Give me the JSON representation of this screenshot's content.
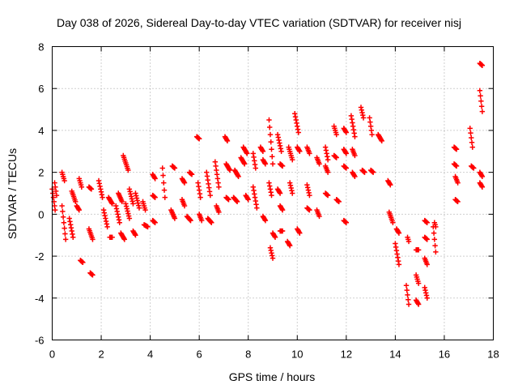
{
  "chart_data": {
    "type": "scatter",
    "title": "Day 038 of 2026, Sidereal Day-to-day VTEC variation (SDTVAR) for receiver nisj",
    "xlabel": "GPS time / hours",
    "ylabel": "SDTVAR / TECUs",
    "xlim": [
      0,
      18
    ],
    "ylim": [
      -6,
      8
    ],
    "xticks": [
      "0",
      "2",
      "4",
      "6",
      "8",
      "10",
      "12",
      "14",
      "16",
      "18"
    ],
    "yticks": [
      "-6",
      "-4",
      "-2",
      "0",
      "2",
      "4",
      "6",
      "8"
    ],
    "grid": true,
    "marker": "+",
    "color": "#ff0000",
    "segments": [
      [
        0.0,
        1.2,
        0.12,
        0.2
      ],
      [
        0.1,
        1.5,
        0.18,
        0.9
      ],
      [
        0.4,
        2.0,
        0.5,
        1.6
      ],
      [
        0.4,
        0.4,
        0.55,
        -1.2
      ],
      [
        0.7,
        -0.2,
        0.85,
        -1.1
      ],
      [
        0.8,
        1.1,
        0.95,
        0.6
      ],
      [
        1.0,
        0.4,
        1.1,
        0.2
      ],
      [
        1.1,
        1.7,
        1.2,
        1.3
      ],
      [
        1.15,
        -2.2,
        1.25,
        -2.3
      ],
      [
        1.5,
        1.3,
        1.6,
        1.2
      ],
      [
        1.5,
        -0.7,
        1.65,
        -1.2
      ],
      [
        1.55,
        -2.8,
        1.65,
        -2.9
      ],
      [
        1.9,
        1.6,
        2.05,
        0.8
      ],
      [
        2.1,
        0.2,
        2.25,
        -0.6
      ],
      [
        2.3,
        0.8,
        2.45,
        0.5
      ],
      [
        2.35,
        -1.1,
        2.45,
        -1.1
      ],
      [
        2.6,
        0.4,
        2.75,
        -0.4
      ],
      [
        2.7,
        1.0,
        2.85,
        0.6
      ],
      [
        2.8,
        -0.9,
        2.95,
        -1.2
      ],
      [
        2.9,
        2.8,
        3.1,
        2.1
      ],
      [
        3.0,
        0.5,
        3.15,
        -0.2
      ],
      [
        3.15,
        1.2,
        3.3,
        0.5
      ],
      [
        3.3,
        -0.8,
        3.4,
        -1.0
      ],
      [
        3.4,
        1.0,
        3.55,
        0.3
      ],
      [
        3.7,
        0.6,
        3.8,
        0.2
      ],
      [
        3.75,
        -0.5,
        3.9,
        -0.6
      ],
      [
        4.1,
        1.9,
        4.2,
        1.7
      ],
      [
        4.1,
        0.9,
        4.2,
        0.8
      ],
      [
        4.1,
        -0.3,
        4.2,
        -0.4
      ],
      [
        4.5,
        2.2,
        4.6,
        0.8
      ],
      [
        4.85,
        0.2,
        5.0,
        -0.2
      ],
      [
        4.9,
        2.3,
        5.0,
        2.2
      ],
      [
        5.3,
        1.7,
        5.4,
        1.5
      ],
      [
        5.3,
        0.7,
        5.4,
        0.4
      ],
      [
        5.5,
        -0.1,
        5.65,
        -0.3
      ],
      [
        5.6,
        2.0,
        5.7,
        1.9
      ],
      [
        5.9,
        3.7,
        6.0,
        3.6
      ],
      [
        5.95,
        1.5,
        6.05,
        0.8
      ],
      [
        6.0,
        0.0,
        6.1,
        -0.3
      ],
      [
        6.3,
        2.0,
        6.45,
        0.9
      ],
      [
        6.35,
        -0.2,
        6.5,
        -0.4
      ],
      [
        6.65,
        2.5,
        6.8,
        1.3
      ],
      [
        6.7,
        0.4,
        6.8,
        0.1
      ],
      [
        7.05,
        3.7,
        7.15,
        3.5
      ],
      [
        7.1,
        2.4,
        7.25,
        2.1
      ],
      [
        7.1,
        0.8,
        7.2,
        0.7
      ],
      [
        7.4,
        0.8,
        7.55,
        0.6
      ],
      [
        7.45,
        2.1,
        7.6,
        1.8
      ],
      [
        7.7,
        2.7,
        7.85,
        2.4
      ],
      [
        7.8,
        3.2,
        7.95,
        2.9
      ],
      [
        7.9,
        0.9,
        8.0,
        0.7
      ],
      [
        8.2,
        2.9,
        8.3,
        2.2
      ],
      [
        8.2,
        1.3,
        8.35,
        0.3
      ],
      [
        8.5,
        3.2,
        8.6,
        3.0
      ],
      [
        8.6,
        2.6,
        8.7,
        2.4
      ],
      [
        8.6,
        -0.1,
        8.7,
        -0.3
      ],
      [
        8.85,
        4.5,
        9.0,
        2.4
      ],
      [
        8.85,
        1.5,
        8.95,
        0.9
      ],
      [
        8.9,
        -1.6,
        9.0,
        -2.1
      ],
      [
        9.0,
        -0.9,
        9.1,
        -1.1
      ],
      [
        9.2,
        3.8,
        9.35,
        3.0
      ],
      [
        9.2,
        1.2,
        9.3,
        1.0
      ],
      [
        9.3,
        2.4,
        9.4,
        2.3
      ],
      [
        9.3,
        0.4,
        9.4,
        0.2
      ],
      [
        9.3,
        -0.8,
        9.4,
        -0.8
      ],
      [
        9.6,
        -1.3,
        9.7,
        -1.5
      ],
      [
        9.65,
        3.2,
        9.8,
        2.6
      ],
      [
        9.7,
        1.5,
        9.8,
        1.0
      ],
      [
        9.9,
        4.8,
        10.05,
        3.9
      ],
      [
        10.0,
        3.2,
        10.1,
        3.0
      ],
      [
        10.0,
        -0.7,
        10.1,
        -0.9
      ],
      [
        10.4,
        1.4,
        10.5,
        0.9
      ],
      [
        10.4,
        0.3,
        10.5,
        0.2
      ],
      [
        10.4,
        3.2,
        10.5,
        2.9
      ],
      [
        10.8,
        2.7,
        10.9,
        2.4
      ],
      [
        10.8,
        0.2,
        10.9,
        -0.1
      ],
      [
        11.15,
        3.2,
        11.25,
        2.6
      ],
      [
        11.15,
        2.3,
        11.25,
        2.0
      ],
      [
        11.15,
        1.0,
        11.25,
        0.9
      ],
      [
        11.5,
        4.2,
        11.6,
        3.8
      ],
      [
        11.5,
        2.8,
        11.6,
        2.7
      ],
      [
        11.6,
        0.7,
        11.7,
        0.6
      ],
      [
        11.9,
        4.1,
        12.0,
        3.9
      ],
      [
        11.9,
        3.1,
        12.0,
        2.9
      ],
      [
        11.9,
        2.3,
        12.0,
        2.2
      ],
      [
        11.9,
        -0.3,
        12.0,
        -0.4
      ],
      [
        12.2,
        4.7,
        12.35,
        3.7
      ],
      [
        12.25,
        3.1,
        12.35,
        2.8
      ],
      [
        12.25,
        2.0,
        12.35,
        1.8
      ],
      [
        12.6,
        5.1,
        12.7,
        4.6
      ],
      [
        12.65,
        2.1,
        12.75,
        2.0
      ],
      [
        12.95,
        4.6,
        13.05,
        3.8
      ],
      [
        13.0,
        2.1,
        13.1,
        2.0
      ],
      [
        13.3,
        3.8,
        13.45,
        3.5
      ],
      [
        13.7,
        1.6,
        13.8,
        1.4
      ],
      [
        13.75,
        0.1,
        13.9,
        -0.4
      ],
      [
        14.05,
        -0.7,
        14.15,
        -0.9
      ],
      [
        14.0,
        -1.4,
        14.15,
        -2.4
      ],
      [
        14.45,
        -3.4,
        14.55,
        -4.3
      ],
      [
        14.5,
        -1.1,
        14.55,
        -1.3
      ],
      [
        14.85,
        -2.9,
        14.95,
        -3.3
      ],
      [
        14.85,
        -1.7,
        14.95,
        -1.7
      ],
      [
        14.85,
        -4.1,
        14.95,
        -4.3
      ],
      [
        15.2,
        -0.3,
        15.3,
        -0.4
      ],
      [
        15.2,
        -1.1,
        15.3,
        -1.2
      ],
      [
        15.2,
        -2.1,
        15.3,
        -2.4
      ],
      [
        15.2,
        -3.5,
        15.3,
        -4.0
      ],
      [
        15.55,
        -0.6,
        15.65,
        -1.8
      ],
      [
        15.6,
        -0.4,
        15.65,
        -0.6
      ],
      [
        16.4,
        3.2,
        16.5,
        3.1
      ],
      [
        16.4,
        2.4,
        16.5,
        2.3
      ],
      [
        16.45,
        1.8,
        16.55,
        1.5
      ],
      [
        16.45,
        0.7,
        16.55,
        0.6
      ],
      [
        17.05,
        4.1,
        17.15,
        3.2
      ],
      [
        17.1,
        2.3,
        17.2,
        2.2
      ],
      [
        17.45,
        7.2,
        17.55,
        7.1
      ],
      [
        17.45,
        5.9,
        17.55,
        4.9
      ],
      [
        17.45,
        2.0,
        17.55,
        1.8
      ],
      [
        17.45,
        1.5,
        17.55,
        1.3
      ]
    ]
  }
}
